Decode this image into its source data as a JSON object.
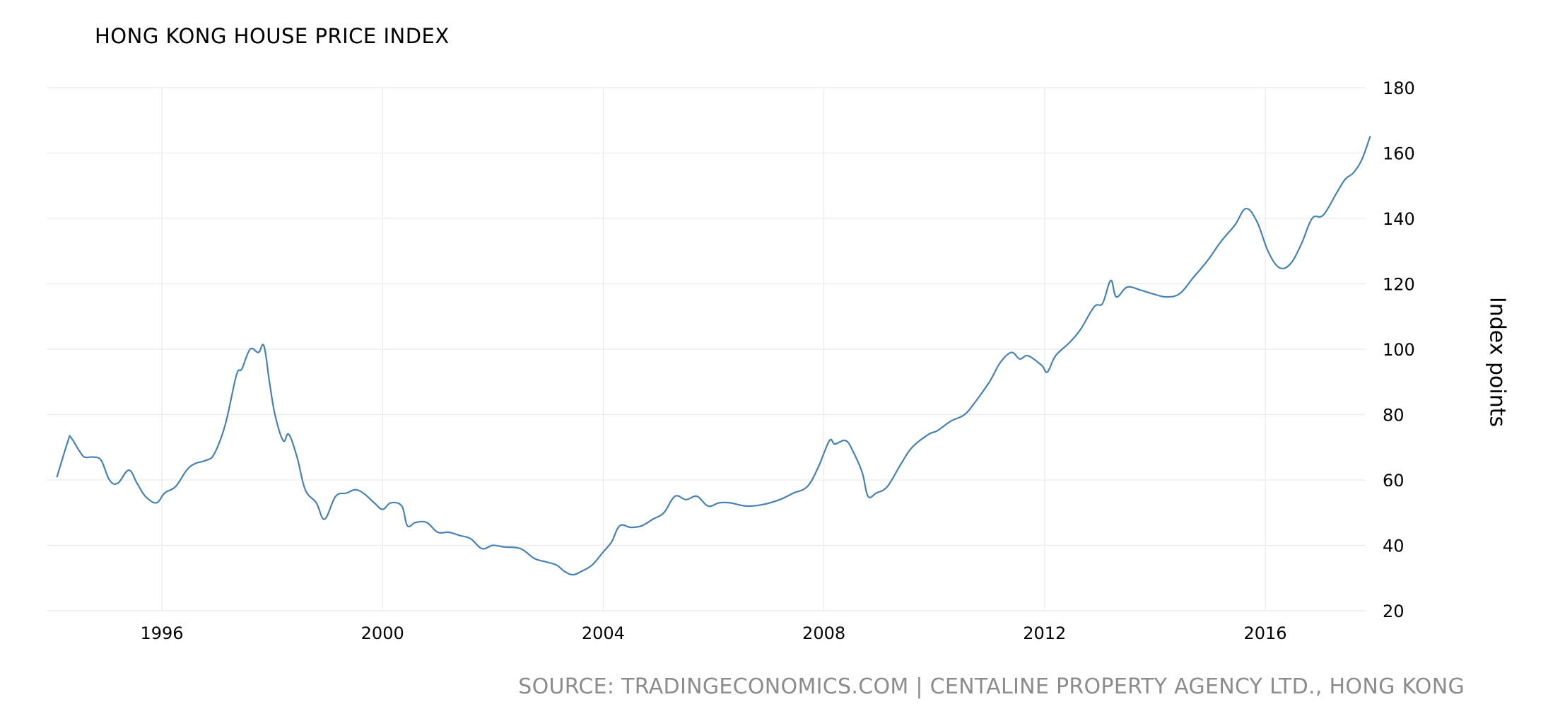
{
  "chart_data": {
    "type": "line",
    "title": "HONG KONG HOUSE PRICE INDEX",
    "ylabel": "Index points",
    "xlabel": "",
    "source": "SOURCE: TRADINGECONOMICS.COM | CENTALINE PROPERTY AGENCY LTD., HONG KONG",
    "xlim": [
      1994.0,
      2018.0
    ],
    "ylim": [
      20,
      180
    ],
    "x_ticks": [
      1996,
      2000,
      2004,
      2008,
      2012,
      2016
    ],
    "y_ticks": [
      20,
      40,
      60,
      80,
      100,
      120,
      140,
      160,
      180
    ],
    "grid": true,
    "y_axis_position": "right",
    "line_color": "#4682b4",
    "series": [
      {
        "x": [
          1994.1,
          1994.3,
          1994.35,
          1994.5,
          1994.6,
          1994.75,
          1994.9,
          1995.05,
          1995.2,
          1995.4,
          1995.55,
          1995.7,
          1995.9,
          1996.05,
          1996.25,
          1996.45,
          1996.6,
          1996.8,
          1996.95,
          1997.15,
          1997.35,
          1997.45,
          1997.6,
          1997.75,
          1997.85,
          1997.95,
          1998.05,
          1998.2,
          1998.3,
          1998.45,
          1998.6,
          1998.8,
          1998.95,
          1999.15,
          1999.35,
          1999.5,
          1999.65,
          1999.85,
          2000.0,
          2000.15,
          2000.35,
          2000.45,
          2000.6,
          2000.8,
          2001.0,
          2001.2,
          2001.4,
          2001.6,
          2001.8,
          2002.0,
          2002.2,
          2002.5,
          2002.75,
          2002.95,
          2003.15,
          2003.3,
          2003.45,
          2003.6,
          2003.8,
          2004.0,
          2004.15,
          2004.3,
          2004.5,
          2004.7,
          2004.9,
          2005.1,
          2005.3,
          2005.5,
          2005.7,
          2005.9,
          2006.1,
          2006.3,
          2006.6,
          2006.9,
          2007.2,
          2007.45,
          2007.7,
          2007.9,
          2008.1,
          2008.2,
          2008.4,
          2008.55,
          2008.7,
          2008.8,
          2008.95,
          2009.15,
          2009.4,
          2009.6,
          2009.9,
          2010.05,
          2010.3,
          2010.55,
          2010.75,
          2011.0,
          2011.2,
          2011.4,
          2011.55,
          2011.7,
          2011.95,
          2012.05,
          2012.2,
          2012.45,
          2012.65,
          2012.9,
          2013.05,
          2013.2,
          2013.3,
          2013.5,
          2013.75,
          2013.95,
          2014.2,
          2014.45,
          2014.7,
          2014.95,
          2015.2,
          2015.45,
          2015.65,
          2015.85,
          2016.05,
          2016.25,
          2016.45,
          2016.65,
          2016.85,
          2017.05,
          2017.3,
          2017.45,
          2017.6,
          2017.75,
          2017.9
        ],
        "y": [
          61,
          72,
          73,
          69,
          67,
          67,
          66,
          60,
          59,
          63,
          59,
          55,
          53,
          56,
          58,
          63,
          65,
          66,
          68,
          77,
          92,
          94,
          100,
          99,
          101,
          90,
          80,
          72,
          74,
          67,
          57,
          53,
          48,
          55,
          56,
          57,
          56,
          53,
          51,
          53,
          52,
          46,
          47,
          47,
          44,
          44,
          43,
          42,
          39,
          40,
          39.5,
          39,
          36,
          35,
          34,
          32,
          31,
          32,
          34,
          38,
          41,
          46,
          45.5,
          46,
          48,
          50,
          55,
          54,
          55,
          52,
          53,
          53,
          52,
          52.5,
          54,
          56,
          58,
          64,
          72,
          71,
          72,
          68,
          62,
          55,
          56,
          58,
          65,
          70,
          74,
          75,
          78,
          80,
          84,
          90,
          96,
          99,
          97,
          98,
          95,
          93,
          98,
          102,
          106,
          113,
          114,
          121,
          116,
          119,
          118,
          117,
          116,
          117,
          122,
          127,
          133,
          138,
          143,
          139,
          130,
          125,
          126,
          132,
          140,
          141,
          148,
          152,
          154,
          158,
          165
        ]
      }
    ]
  }
}
